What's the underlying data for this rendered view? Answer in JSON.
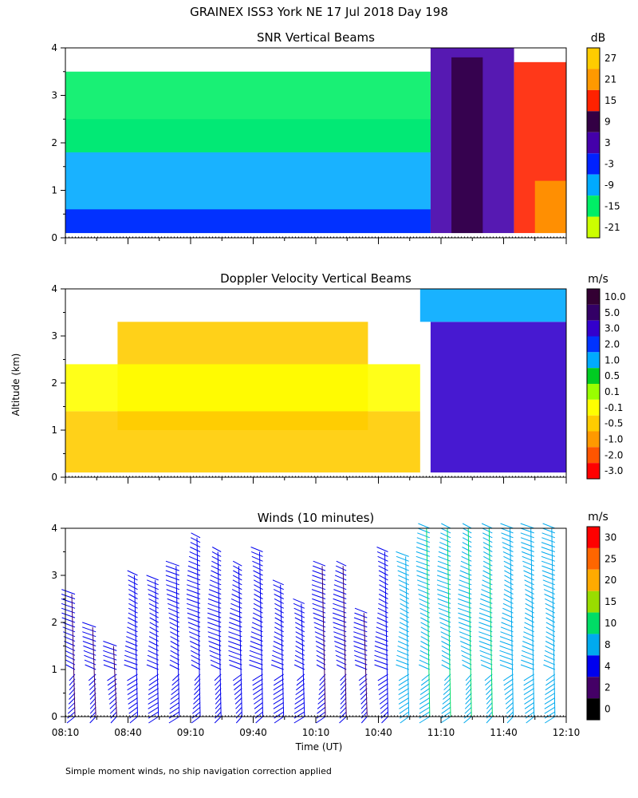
{
  "title": "GRAINEX ISS3 York NE  17 Jul 2018 Day 198",
  "footnote": "Simple moment winds, no ship navigation correction applied",
  "y_axis_label": "Altitude (km)",
  "x_axis_label": "Time (UT)",
  "x_tick_labels": [
    "08:10",
    "08:40",
    "09:10",
    "09:40",
    "10:10",
    "10:40",
    "11:10",
    "11:40",
    "12:10"
  ],
  "y_tick_labels": [
    "0",
    "1",
    "2",
    "3",
    "4"
  ],
  "chart_data": [
    {
      "type": "heatmap",
      "title": "SNR Vertical Beams",
      "colorbar_unit": "dB",
      "colorbar_labels": [
        "27",
        "21",
        "15",
        "9",
        "3",
        "-3",
        "-9",
        "-15",
        "-21"
      ],
      "colorbar_colors": [
        "#ffcc00",
        "#ff9900",
        "#ff2200",
        "#330044",
        "#4400aa",
        "#0022ff",
        "#00aaff",
        "#00ee66",
        "#ccff00"
      ],
      "xlim": [
        "08:10",
        "12:10"
      ],
      "ylim": [
        0,
        4
      ],
      "regions": [
        {
          "x": [
            "08:10",
            "11:05"
          ],
          "y": [
            0.1,
            2.5
          ],
          "value": -9
        },
        {
          "x": [
            "08:10",
            "11:05"
          ],
          "y": [
            0.1,
            0.6
          ],
          "value": -3
        },
        {
          "x": [
            "08:10",
            "11:05"
          ],
          "y": [
            1.8,
            3.5
          ],
          "value": -15
        },
        {
          "x": [
            "11:05",
            "11:45"
          ],
          "y": [
            0.1,
            4.0
          ],
          "value": 3
        },
        {
          "x": [
            "11:15",
            "11:30"
          ],
          "y": [
            0.1,
            3.8
          ],
          "value": 9
        },
        {
          "x": [
            "11:45",
            "12:10"
          ],
          "y": [
            0.1,
            3.7
          ],
          "value": 15
        },
        {
          "x": [
            "11:55",
            "12:10"
          ],
          "y": [
            0.1,
            1.2
          ],
          "value": 21
        }
      ]
    },
    {
      "type": "heatmap",
      "title": "Doppler Velocity Vertical Beams",
      "colorbar_unit": "m/s",
      "colorbar_labels": [
        "10.0",
        "5.0",
        "3.0",
        "2.0",
        "1.0",
        "0.5",
        "0.1",
        "-0.1",
        "-0.5",
        "-1.0",
        "-2.0",
        "-3.0"
      ],
      "colorbar_colors": [
        "#330033",
        "#330066",
        "#3300cc",
        "#0033ff",
        "#00aaff",
        "#00cc22",
        "#99ff00",
        "#ffff00",
        "#ffcc00",
        "#ff9900",
        "#ff5500",
        "#ff0000"
      ],
      "xlim": [
        "08:10",
        "12:10"
      ],
      "ylim": [
        0,
        4
      ],
      "regions": [
        {
          "x": [
            "08:10",
            "11:00"
          ],
          "y": [
            0.1,
            1.4
          ],
          "value": -0.5
        },
        {
          "x": [
            "08:35",
            "10:35"
          ],
          "y": [
            1.0,
            3.3
          ],
          "value": -0.5
        },
        {
          "x": [
            "08:10",
            "11:00"
          ],
          "y": [
            1.4,
            2.4
          ],
          "value": -0.1
        },
        {
          "x": [
            "11:05",
            "12:10"
          ],
          "y": [
            0.1,
            3.3
          ],
          "value": 3.0
        },
        {
          "x": [
            "11:00",
            "12:10"
          ],
          "y": [
            3.3,
            4.0
          ],
          "value": 1.0
        }
      ]
    },
    {
      "type": "scatter",
      "title": "Winds (10 minutes)",
      "colorbar_unit": "m/s",
      "colorbar_labels": [
        "30",
        "25",
        "20",
        "15",
        "10",
        "8",
        "4",
        "2",
        "0"
      ],
      "colorbar_colors": [
        "#ff0000",
        "#ff6600",
        "#ffaa00",
        "#99dd00",
        "#00dd66",
        "#00aaee",
        "#0000ee",
        "#440066",
        "#000000"
      ],
      "xlim": [
        "08:10",
        "12:10"
      ],
      "ylim": [
        0,
        4
      ],
      "times": [
        "08:10",
        "08:20",
        "08:30",
        "08:40",
        "08:50",
        "09:00",
        "09:10",
        "09:20",
        "09:30",
        "09:40",
        "09:50",
        "10:00",
        "10:10",
        "10:20",
        "10:30",
        "10:40",
        "10:50",
        "11:00",
        "11:10",
        "11:20",
        "11:30",
        "11:40",
        "11:50",
        "12:00"
      ],
      "top_altitudes_km": [
        2.6,
        1.9,
        1.5,
        3.0,
        2.9,
        3.2,
        3.8,
        3.5,
        3.2,
        3.5,
        2.8,
        2.4,
        3.2,
        3.2,
        2.2,
        3.5,
        3.4,
        4.0,
        4.0,
        4.0,
        4.0,
        4.0,
        4.0,
        4.0
      ],
      "speeds_ms": [
        3,
        3,
        3,
        4,
        4,
        4,
        4,
        4,
        4,
        4,
        4,
        4,
        3,
        3,
        3,
        4,
        6,
        8,
        8,
        8,
        8,
        6,
        6,
        6
      ]
    }
  ]
}
